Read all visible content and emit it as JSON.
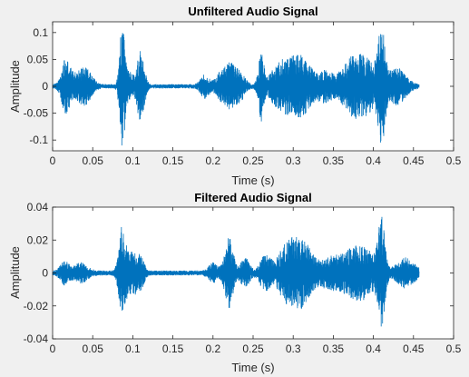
{
  "chart_data": [
    {
      "type": "line",
      "title": "Unfiltered Audio Signal",
      "xlabel": "Time (s)",
      "ylabel": "Amplitude",
      "xlim": [
        0,
        0.5
      ],
      "ylim": [
        -0.12,
        0.12
      ],
      "x_ticks": [
        "0",
        "0.05",
        "0.1",
        "0.15",
        "0.2",
        "0.25",
        "0.3",
        "0.35",
        "0.4",
        "0.45",
        "0.5"
      ],
      "y_ticks": [
        "0.1",
        "0.05",
        "0",
        "-0.05",
        "-0.1"
      ],
      "y_tick_values": [
        0.1,
        0.05,
        0,
        -0.05,
        -0.1
      ],
      "grid": false,
      "line_color": "#0072bd",
      "duration_s": 0.457,
      "noise_floor": 0.004,
      "bursts": [
        {
          "t": 0.015,
          "amp": 0.022,
          "width": 0.004
        },
        {
          "t": 0.019,
          "amp": 0.03,
          "width": 0.006
        },
        {
          "t": 0.035,
          "amp": 0.025,
          "width": 0.006
        },
        {
          "t": 0.045,
          "amp": 0.02,
          "width": 0.006
        },
        {
          "t": 0.087,
          "amp": 0.12,
          "width": 0.003
        },
        {
          "t": 0.097,
          "amp": 0.025,
          "width": 0.004
        },
        {
          "t": 0.11,
          "amp": 0.07,
          "width": 0.004
        },
        {
          "t": 0.19,
          "amp": 0.02,
          "width": 0.005
        },
        {
          "t": 0.208,
          "amp": 0.018,
          "width": 0.005
        },
        {
          "t": 0.22,
          "amp": 0.038,
          "width": 0.006
        },
        {
          "t": 0.233,
          "amp": 0.025,
          "width": 0.006
        },
        {
          "t": 0.26,
          "amp": 0.06,
          "width": 0.003
        },
        {
          "t": 0.285,
          "amp": 0.04,
          "width": 0.012
        },
        {
          "t": 0.31,
          "amp": 0.05,
          "width": 0.012
        },
        {
          "t": 0.34,
          "amp": 0.025,
          "width": 0.008
        },
        {
          "t": 0.37,
          "amp": 0.03,
          "width": 0.012
        },
        {
          "t": 0.39,
          "amp": 0.045,
          "width": 0.015
        },
        {
          "t": 0.41,
          "amp": 0.09,
          "width": 0.004
        },
        {
          "t": 0.43,
          "amp": 0.03,
          "width": 0.01
        }
      ]
    },
    {
      "type": "line",
      "title": "Filtered Audio Signal",
      "xlabel": "Time (s)",
      "ylabel": "Amplitude",
      "xlim": [
        0,
        0.5
      ],
      "ylim": [
        -0.04,
        0.04
      ],
      "x_ticks": [
        "0",
        "0.05",
        "0.1",
        "0.15",
        "0.2",
        "0.25",
        "0.3",
        "0.35",
        "0.4",
        "0.45",
        "0.5"
      ],
      "y_ticks": [
        "0.04",
        "0.02",
        "0",
        "-0.02",
        "-0.04"
      ],
      "y_tick_values": [
        0.04,
        0.02,
        0,
        -0.02,
        -0.04
      ],
      "grid": false,
      "line_color": "#0072bd",
      "duration_s": 0.457,
      "noise_floor": 0.0015,
      "bursts": [
        {
          "t": 0.015,
          "amp": 0.006,
          "width": 0.005
        },
        {
          "t": 0.035,
          "amp": 0.005,
          "width": 0.008
        },
        {
          "t": 0.087,
          "amp": 0.028,
          "width": 0.004
        },
        {
          "t": 0.1,
          "amp": 0.012,
          "width": 0.005
        },
        {
          "t": 0.11,
          "amp": 0.008,
          "width": 0.004
        },
        {
          "t": 0.2,
          "amp": 0.005,
          "width": 0.005
        },
        {
          "t": 0.22,
          "amp": 0.02,
          "width": 0.005
        },
        {
          "t": 0.24,
          "amp": 0.008,
          "width": 0.005
        },
        {
          "t": 0.265,
          "amp": 0.01,
          "width": 0.006
        },
        {
          "t": 0.29,
          "amp": 0.012,
          "width": 0.01
        },
        {
          "t": 0.31,
          "amp": 0.019,
          "width": 0.012
        },
        {
          "t": 0.345,
          "amp": 0.008,
          "width": 0.01
        },
        {
          "t": 0.37,
          "amp": 0.01,
          "width": 0.012
        },
        {
          "t": 0.39,
          "amp": 0.012,
          "width": 0.012
        },
        {
          "t": 0.41,
          "amp": 0.03,
          "width": 0.004
        },
        {
          "t": 0.44,
          "amp": 0.008,
          "width": 0.01
        }
      ]
    }
  ]
}
